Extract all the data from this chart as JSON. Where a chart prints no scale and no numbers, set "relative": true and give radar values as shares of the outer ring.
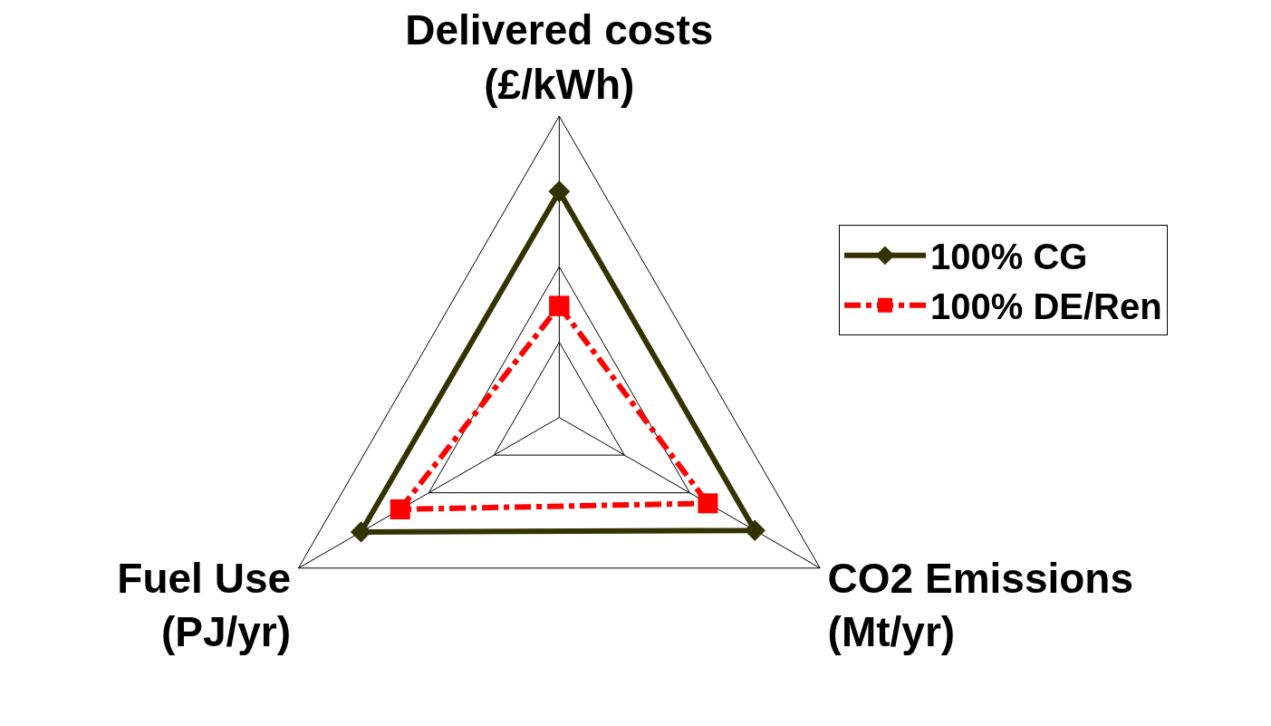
{
  "chart_data": {
    "type": "radar",
    "relative": true,
    "categories": [
      "Delivered costs\n(£/kWh)",
      "CO2 Emissions\n(Mt/yr)",
      "Fuel Use\n(PJ/yr)"
    ],
    "series": [
      {
        "name": "100% CG",
        "color": "#333300",
        "marker": "diamond",
        "line_style": "solid",
        "values": [
          0.75,
          0.75,
          0.76
        ]
      },
      {
        "name": "100% DE/Ren",
        "color": "#ff0000",
        "marker": "square",
        "line_style": "dashed",
        "values": [
          0.37,
          0.57,
          0.61
        ]
      }
    ],
    "grid": true,
    "legend": "right"
  }
}
